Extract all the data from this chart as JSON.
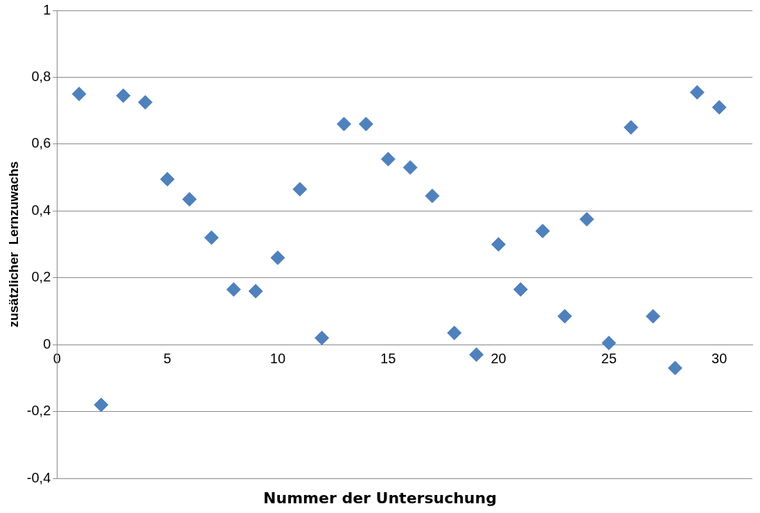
{
  "chart_data": {
    "type": "scatter",
    "xlabel": "Nummer der Untersuchung",
    "ylabel": "zusätzlicher  Lernzuwachs",
    "x": [
      1,
      2,
      3,
      4,
      5,
      6,
      7,
      8,
      9,
      10,
      11,
      12,
      13,
      14,
      15,
      16,
      17,
      18,
      19,
      20,
      21,
      22,
      23,
      24,
      25,
      26,
      27,
      28,
      29,
      30
    ],
    "series": [
      {
        "color": "#4f81bd",
        "values": [
          0.75,
          -0.18,
          0.745,
          0.725,
          0.495,
          0.435,
          0.32,
          0.165,
          0.16,
          0.26,
          0.465,
          0.02,
          0.66,
          0.66,
          0.555,
          0.53,
          0.445,
          0.035,
          -0.03,
          0.3,
          0.165,
          0.34,
          0.085,
          0.375,
          0.005,
          0.65,
          0.085,
          -0.07,
          0.755,
          0.71
        ]
      }
    ],
    "xlim": [
      0,
      31.5
    ],
    "xticks": [
      0,
      5,
      10,
      15,
      20,
      25,
      30
    ],
    "ylim": [
      -0.4,
      1
    ],
    "yticks": [
      {
        "value": -0.4,
        "label": "-0,4"
      },
      {
        "value": -0.2,
        "label": "-0,2"
      },
      0,
      {
        "value": 0.2,
        "label": "0,2"
      },
      {
        "value": 0.4,
        "label": "0,4"
      },
      {
        "value": 0.6,
        "label": "0,6"
      },
      {
        "value": 0.8,
        "label": "0,8"
      },
      1
    ],
    "grid": "y",
    "legend": false,
    "marker": "diamond"
  }
}
